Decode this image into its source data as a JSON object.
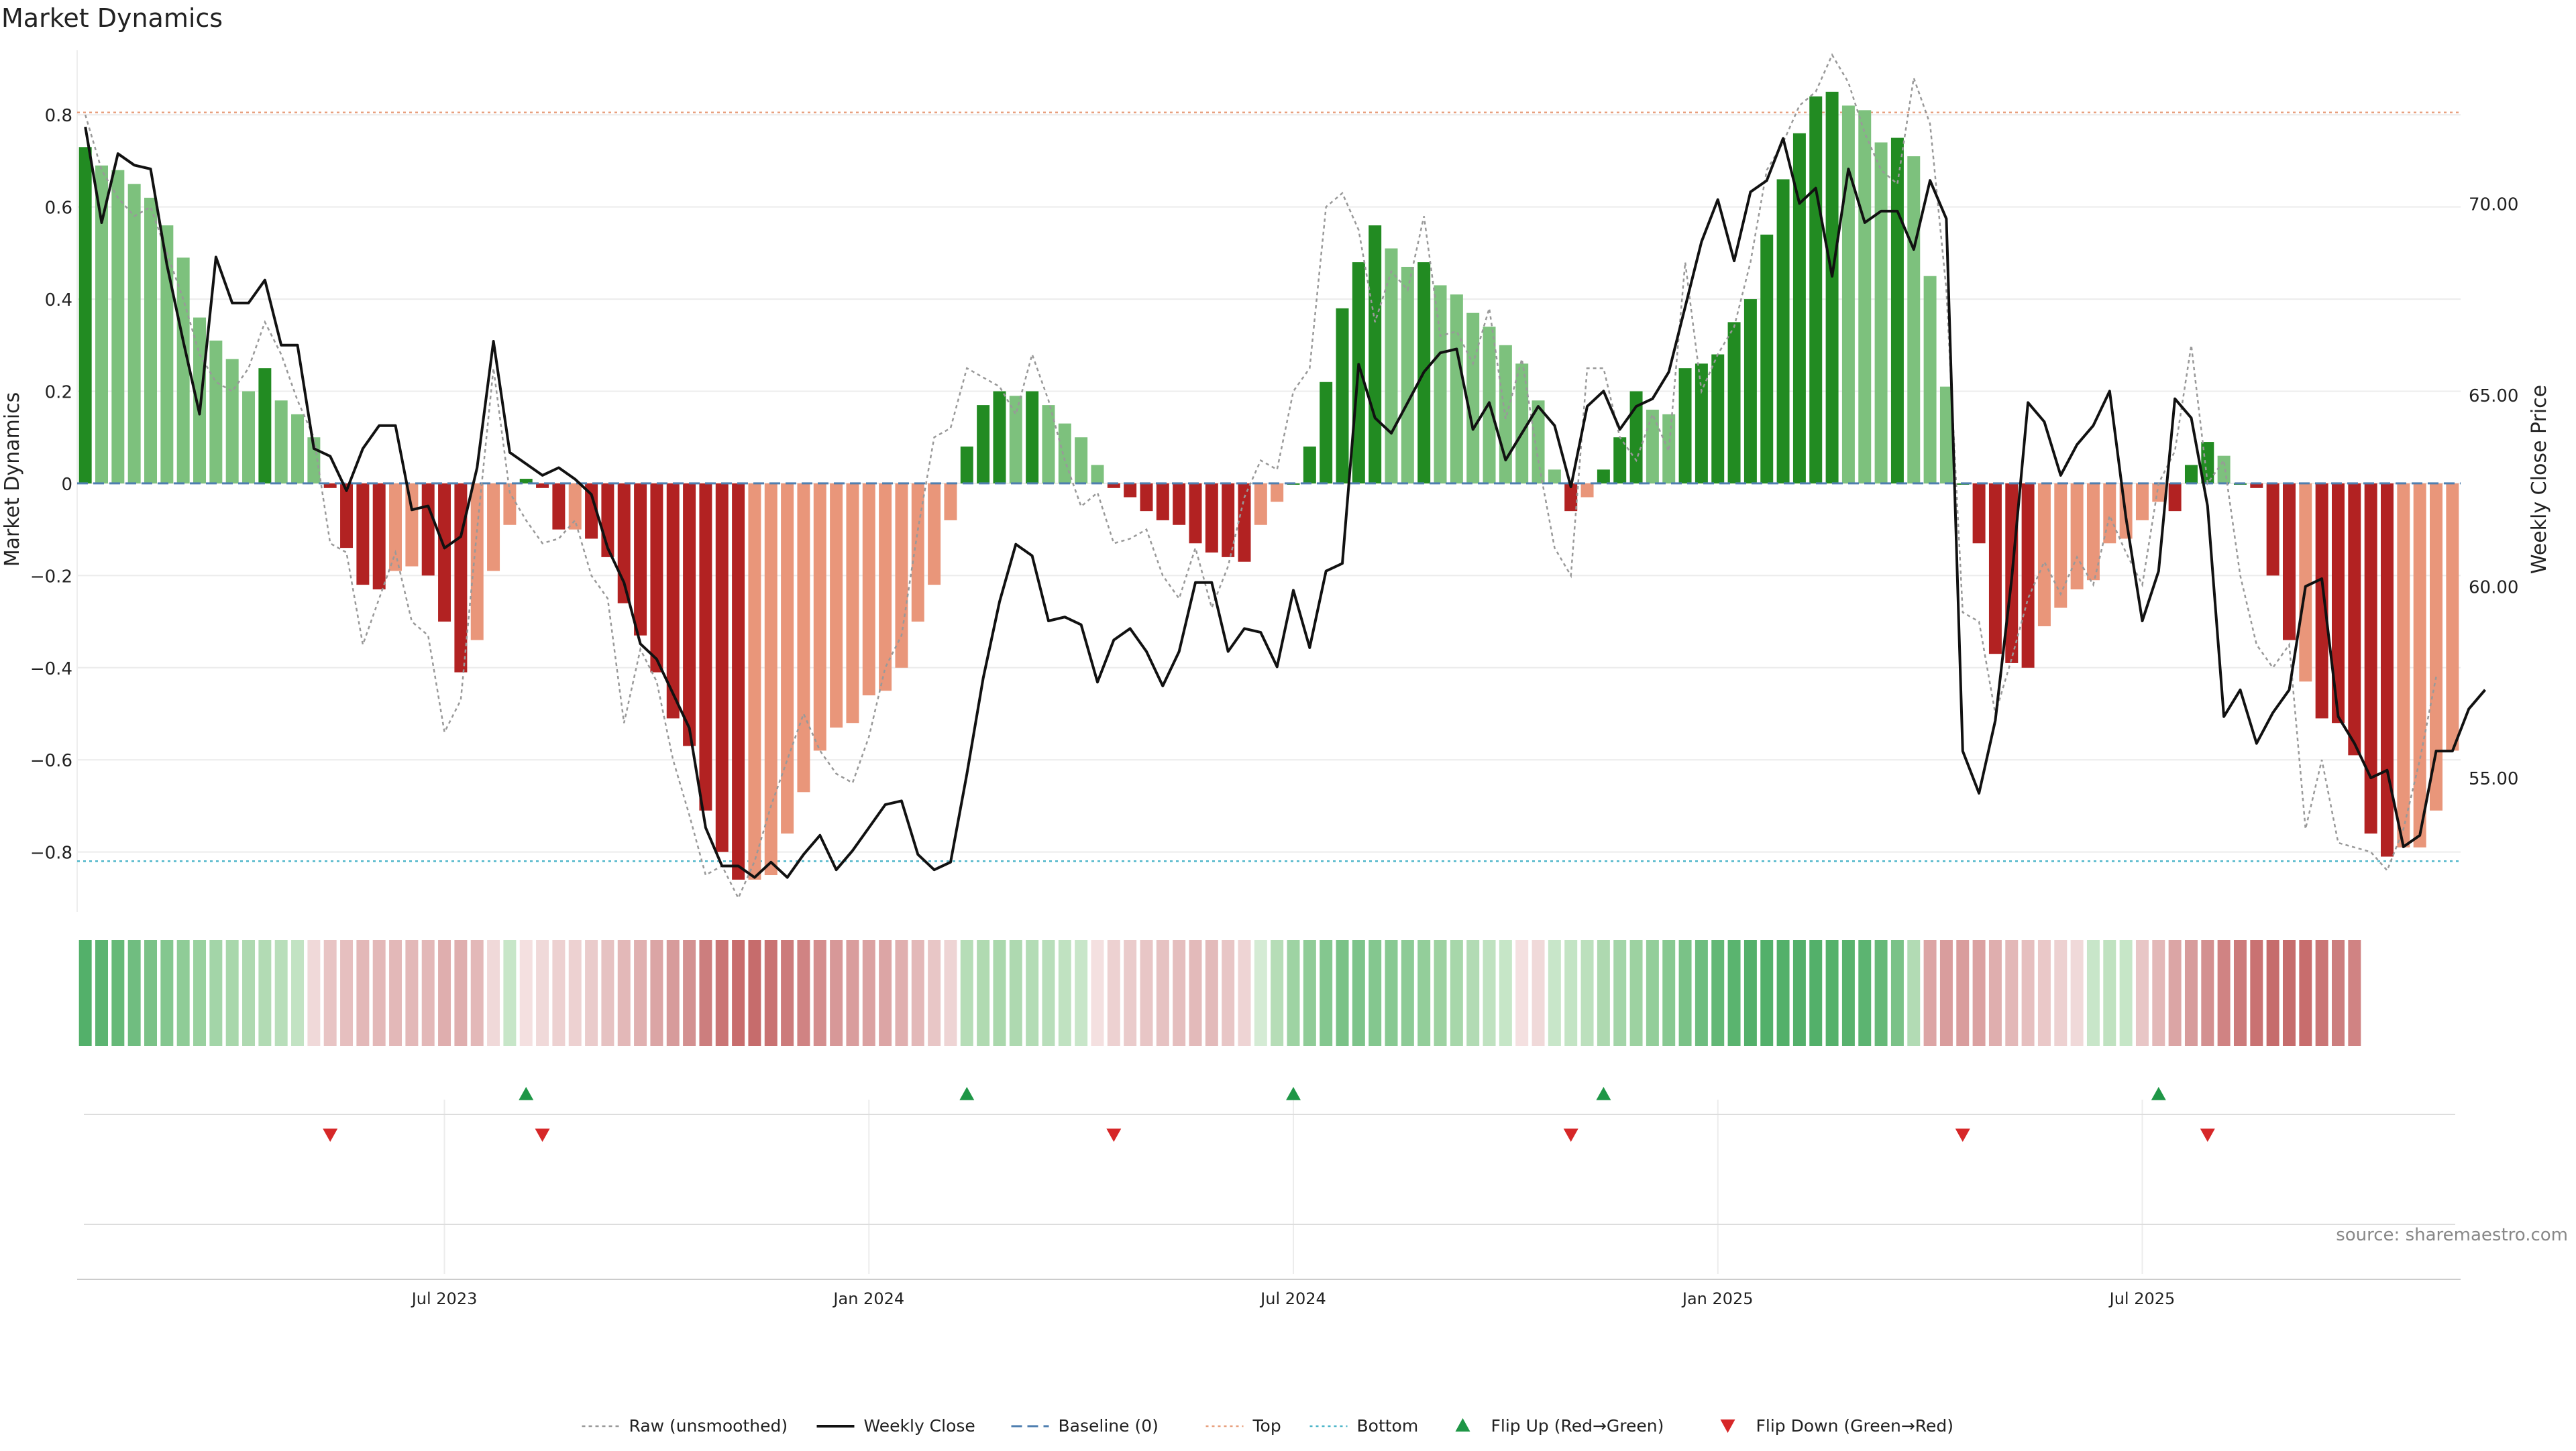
{
  "chart_data": {
    "type": "bar",
    "title": "Market Dynamics",
    "ylabel_left": "Market Dynamics",
    "ylabel_right": "Weekly Close Price",
    "source": "source: sharemaestro.com",
    "y_left_ticks": [
      "0.8",
      "0.6",
      "0.4",
      "0.2",
      "0",
      "−0.2",
      "−0.4",
      "−0.6",
      "−0.8"
    ],
    "y_left_tick_values": [
      0.8,
      0.6,
      0.4,
      0.2,
      0,
      -0.2,
      -0.4,
      -0.6,
      -0.8
    ],
    "y_right_ticks": [
      "70.00",
      "65.00",
      "60.00",
      "55.00"
    ],
    "y_right_tick_values": [
      70,
      65,
      60,
      55
    ],
    "x_ticks": [
      {
        "label": "Jul 2023",
        "index": 22
      },
      {
        "label": "Jan 2024",
        "index": 48
      },
      {
        "label": "Jul 2024",
        "index": 74
      },
      {
        "label": "Jan 2025",
        "index": 100
      },
      {
        "label": "Jul 2025",
        "index": 126
      }
    ],
    "ylim_left": [
      -0.93,
      0.94
    ],
    "ylim_right": [
      51.5,
      74
    ],
    "top_level": 0.805,
    "bottom_level": -0.82,
    "values": [
      0.73,
      0.69,
      0.68,
      0.65,
      0.62,
      0.56,
      0.49,
      0.36,
      0.31,
      0.27,
      0.2,
      0.25,
      0.18,
      0.15,
      0.1,
      -0.01,
      -0.14,
      -0.22,
      -0.23,
      -0.19,
      -0.18,
      -0.2,
      -0.3,
      -0.41,
      -0.34,
      -0.19,
      -0.09,
      0.01,
      -0.01,
      -0.1,
      -0.1,
      -0.12,
      -0.16,
      -0.26,
      -0.33,
      -0.41,
      -0.51,
      -0.57,
      -0.71,
      -0.8,
      -0.86,
      -0.86,
      -0.85,
      -0.76,
      -0.67,
      -0.58,
      -0.53,
      -0.52,
      -0.46,
      -0.45,
      -0.4,
      -0.3,
      -0.22,
      -0.08,
      0.08,
      0.17,
      0.2,
      0.19,
      0.2,
      0.17,
      0.13,
      0.1,
      0.04,
      -0.01,
      -0.03,
      -0.06,
      -0.08,
      -0.09,
      -0.13,
      -0.15,
      -0.16,
      -0.17,
      -0.09,
      -0.04,
      0.0,
      0.08,
      0.22,
      0.38,
      0.48,
      0.56,
      0.51,
      0.47,
      0.48,
      0.43,
      0.41,
      0.37,
      0.34,
      0.3,
      0.26,
      0.18,
      0.03,
      -0.06,
      -0.03,
      0.03,
      0.1,
      0.2,
      0.16,
      0.15,
      0.25,
      0.26,
      0.28,
      0.35,
      0.4,
      0.54,
      0.66,
      0.76,
      0.84,
      0.85,
      0.82,
      0.81,
      0.74,
      0.75,
      0.71,
      0.45,
      0.21,
      0.0,
      -0.13,
      -0.37,
      -0.39,
      -0.4,
      -0.31,
      -0.27,
      -0.23,
      -0.21,
      -0.13,
      -0.12,
      -0.08,
      -0.04,
      -0.06,
      0.04,
      0.09,
      0.06,
      0.0,
      -0.01,
      -0.2,
      -0.34,
      -0.43,
      -0.51,
      -0.52,
      -0.59,
      -0.76,
      -0.81,
      -0.79,
      -0.79,
      -0.71,
      -0.58
    ],
    "bar_colors": [
      "#228B22",
      "#7DC17D",
      "#7DC17D",
      "#7DC17D",
      "#7DC17D",
      "#7DC17D",
      "#7DC17D",
      "#7DC17D",
      "#7DC17D",
      "#7DC17D",
      "#7DC17D",
      "#228B22",
      "#7DC17D",
      "#7DC17D",
      "#7DC17D",
      "#B22222",
      "#B22222",
      "#B22222",
      "#B22222",
      "#E9967A",
      "#E9967A",
      "#B22222",
      "#B22222",
      "#B22222",
      "#E9967A",
      "#E9967A",
      "#E9967A",
      "#228B22",
      "#B22222",
      "#B22222",
      "#E9967A",
      "#B22222",
      "#B22222",
      "#B22222",
      "#B22222",
      "#B22222",
      "#B22222",
      "#B22222",
      "#B22222",
      "#B22222",
      "#B22222",
      "#E9967A",
      "#E9967A",
      "#E9967A",
      "#E9967A",
      "#E9967A",
      "#E9967A",
      "#E9967A",
      "#E9967A",
      "#E9967A",
      "#E9967A",
      "#E9967A",
      "#E9967A",
      "#E9967A",
      "#228B22",
      "#228B22",
      "#228B22",
      "#7DC17D",
      "#228B22",
      "#7DC17D",
      "#7DC17D",
      "#7DC17D",
      "#7DC17D",
      "#B22222",
      "#B22222",
      "#B22222",
      "#B22222",
      "#B22222",
      "#B22222",
      "#B22222",
      "#B22222",
      "#B22222",
      "#E9967A",
      "#E9967A",
      "#228B22",
      "#228B22",
      "#228B22",
      "#228B22",
      "#228B22",
      "#228B22",
      "#7DC17D",
      "#7DC17D",
      "#228B22",
      "#7DC17D",
      "#7DC17D",
      "#7DC17D",
      "#7DC17D",
      "#7DC17D",
      "#7DC17D",
      "#7DC17D",
      "#7DC17D",
      "#B22222",
      "#E9967A",
      "#228B22",
      "#228B22",
      "#228B22",
      "#7DC17D",
      "#7DC17D",
      "#228B22",
      "#228B22",
      "#228B22",
      "#228B22",
      "#228B22",
      "#228B22",
      "#228B22",
      "#228B22",
      "#228B22",
      "#228B22",
      "#7DC17D",
      "#7DC17D",
      "#7DC17D",
      "#228B22",
      "#7DC17D",
      "#7DC17D",
      "#7DC17D",
      "#228B22",
      "#B22222",
      "#B22222",
      "#B22222",
      "#B22222",
      "#E9967A",
      "#E9967A",
      "#E9967A",
      "#E9967A",
      "#E9967A",
      "#E9967A",
      "#E9967A",
      "#E9967A",
      "#B22222",
      "#228B22",
      "#228B22",
      "#7DC17D",
      "#228B22",
      "#B22222",
      "#B22222",
      "#B22222",
      "#E9967A",
      "#B22222",
      "#B22222",
      "#B22222",
      "#B22222",
      "#B22222",
      "#E9967A",
      "#E9967A",
      "#E9967A",
      "#E9967A"
    ],
    "raw_values": [
      0.8,
      0.68,
      0.62,
      0.58,
      0.6,
      0.5,
      0.4,
      0.28,
      0.22,
      0.2,
      0.25,
      0.35,
      0.28,
      0.18,
      0.1,
      -0.13,
      -0.15,
      -0.35,
      -0.25,
      -0.15,
      -0.3,
      -0.33,
      -0.54,
      -0.47,
      -0.1,
      0.25,
      -0.02,
      -0.08,
      -0.13,
      -0.12,
      -0.08,
      -0.2,
      -0.25,
      -0.52,
      -0.36,
      -0.43,
      -0.6,
      -0.72,
      -0.85,
      -0.83,
      -0.9,
      -0.82,
      -0.7,
      -0.6,
      -0.5,
      -0.58,
      -0.63,
      -0.65,
      -0.55,
      -0.4,
      -0.33,
      -0.1,
      0.1,
      0.12,
      0.25,
      0.23,
      0.21,
      0.15,
      0.28,
      0.18,
      0.05,
      -0.05,
      -0.02,
      -0.13,
      -0.12,
      -0.1,
      -0.2,
      -0.25,
      -0.14,
      -0.27,
      -0.18,
      -0.03,
      0.05,
      0.03,
      0.2,
      0.25,
      0.6,
      0.63,
      0.55,
      0.35,
      0.46,
      0.42,
      0.58,
      0.32,
      0.33,
      0.26,
      0.38,
      0.14,
      0.27,
      0.05,
      -0.14,
      -0.2,
      0.25,
      0.25,
      0.1,
      0.05,
      0.15,
      0.07,
      0.48,
      0.2,
      0.28,
      0.34,
      0.48,
      0.68,
      0.74,
      0.82,
      0.85,
      0.93,
      0.87,
      0.76,
      0.68,
      0.65,
      0.88,
      0.78,
      0.42,
      -0.28,
      -0.3,
      -0.5,
      -0.38,
      -0.25,
      -0.17,
      -0.24,
      -0.16,
      -0.22,
      -0.07,
      -0.15,
      -0.22,
      0.0,
      0.07,
      0.3,
      0.0,
      0.05,
      -0.2,
      -0.35,
      -0.4,
      -0.35,
      -0.75,
      -0.6,
      -0.78,
      -0.79,
      -0.8,
      -0.84,
      -0.75,
      -0.6,
      -0.42
    ],
    "weekly_close": [
      72.0,
      69.5,
      71.3,
      71.0,
      70.9,
      68.4,
      66.4,
      64.5,
      68.6,
      67.4,
      67.4,
      68.0,
      66.3,
      66.3,
      63.6,
      63.4,
      62.5,
      63.6,
      64.2,
      64.2,
      62.0,
      62.1,
      61.0,
      61.3,
      63.1,
      66.4,
      63.5,
      63.2,
      62.9,
      63.1,
      62.8,
      62.4,
      61.0,
      60.1,
      58.5,
      58.1,
      57.2,
      56.3,
      53.7,
      52.7,
      52.7,
      52.4,
      52.8,
      52.4,
      53.0,
      53.5,
      52.6,
      53.1,
      53.7,
      54.3,
      54.4,
      53.0,
      52.6,
      52.8,
      55.1,
      57.6,
      59.6,
      61.1,
      60.8,
      59.1,
      59.2,
      59.0,
      57.5,
      58.6,
      58.9,
      58.3,
      57.4,
      58.3,
      60.1,
      60.1,
      58.3,
      58.9,
      58.8,
      57.9,
      59.9,
      58.4,
      60.4,
      60.6,
      65.8,
      64.4,
      64.0,
      64.8,
      65.6,
      66.1,
      66.2,
      64.1,
      64.8,
      63.3,
      64.0,
      64.7,
      64.2,
      62.6,
      64.7,
      65.1,
      64.1,
      64.7,
      64.9,
      65.6,
      67.3,
      69.0,
      70.1,
      68.5,
      70.3,
      70.6,
      71.7,
      70.0,
      70.4,
      68.1,
      70.9,
      69.5,
      69.8,
      69.8,
      68.8,
      70.6,
      69.6,
      55.7,
      54.6,
      56.5,
      60.2,
      64.8,
      64.3,
      62.9,
      63.7,
      64.2,
      65.1,
      61.8,
      59.1,
      60.4,
      64.9,
      64.4,
      62.1,
      56.6,
      57.3,
      55.9,
      56.7,
      57.3,
      60.0,
      60.2,
      56.6,
      55.9,
      55.0,
      55.2,
      53.2,
      53.5,
      55.7,
      55.7,
      56.8,
      57.3
    ]
  },
  "heat_strip": {
    "colors": [
      "#53B06A",
      "#5CB471",
      "#66B978",
      "#70BD80",
      "#7AC287",
      "#84C78F",
      "#8FCC97",
      "#99D19F",
      "#A3D5A8",
      "#A8D7AB",
      "#AED9B0",
      "#B2DBB4",
      "#B8DEBA",
      "#C2E3C3",
      "#F0D9D9",
      "#E8C4C4",
      "#E6BFBF",
      "#E3B8B8",
      "#E3B8B8",
      "#E3B8B8",
      "#E3B8B8",
      "#E3B8B8",
      "#DFAEAE",
      "#DFAEAE",
      "#E3B8B8",
      "#F0D9D9",
      "#C7E6C8",
      "#F4E0E0",
      "#F0D9D9",
      "#EDD1D1",
      "#EDD1D1",
      "#EACBCB",
      "#E6C2C2",
      "#E3B8B8",
      "#E0B0B0",
      "#DBA5A5",
      "#D79B9B",
      "#D39090",
      "#CC7E7E",
      "#CA7575",
      "#C86D6D",
      "#C66C6C",
      "#C97272",
      "#CC7B7B",
      "#D08383",
      "#D48E8E",
      "#D79898",
      "#D99D9D",
      "#DBA1A1",
      "#DCA5A5",
      "#E0AFAF",
      "#E3B8B8",
      "#E8C6C6",
      "#EED4D4",
      "#B6DDB7",
      "#B0DAB1",
      "#AAD8AC",
      "#AED9B0",
      "#B3DCB5",
      "#B8DEBA",
      "#C0E2C1",
      "#C8E6C9",
      "#F4E0E0",
      "#EDD1D1",
      "#EACBCB",
      "#E8C6C6",
      "#E6C2C2",
      "#E5BEBE",
      "#E3BABA",
      "#E3BABA",
      "#E8C6C6",
      "#EED4D4",
      "#D4EBD4",
      "#B6DDB7",
      "#9ED3A3",
      "#8FCC97",
      "#84C78F",
      "#7AC287",
      "#7DC48A",
      "#84C78F",
      "#88C992",
      "#8DCB96",
      "#93CE9A",
      "#9DD2A1",
      "#A7D7AA",
      "#B2DBB4",
      "#BFE2C0",
      "#C6E6C7",
      "#F4E0E0",
      "#F0D9D9",
      "#C8E6C9",
      "#C3E4C4",
      "#BCE0BD",
      "#AED9B0",
      "#A3D5A8",
      "#9DD2A1",
      "#93CE9A",
      "#88C992",
      "#7AC287",
      "#6EBD7F",
      "#63B876",
      "#5AB46F",
      "#53B06A",
      "#53B06A",
      "#53B06A",
      "#53B06A",
      "#53B06A",
      "#55B16B",
      "#58B26D",
      "#5CB471",
      "#66B978",
      "#7AC287",
      "#B2DBB4",
      "#DCA5A5",
      "#D99D9D",
      "#D99D9D",
      "#DBA1A1",
      "#DFAEAE",
      "#E3B8B8",
      "#E6BFBF",
      "#EAC8C8",
      "#EDD1D1",
      "#F0D9D9",
      "#C8E6C9",
      "#BFE2C0",
      "#C6E6C7",
      "#E8C6C6",
      "#E3B8B8",
      "#DBA5A5",
      "#D79B9B",
      "#D39090",
      "#D08383",
      "#CC7B7B",
      "#C97272",
      "#C66C6C",
      "#C66C6C",
      "#C86D6D",
      "#CA7575",
      "#CC7E7E",
      "#D08383"
    ]
  },
  "events": {
    "flip_up_indices": [
      27,
      54,
      74,
      93,
      127
    ],
    "flip_down_indices": [
      15,
      28,
      63,
      91,
      115,
      130
    ]
  },
  "legend": {
    "items": [
      {
        "key": "raw",
        "label": "Raw (unsmoothed)"
      },
      {
        "key": "close",
        "label": "Weekly Close"
      },
      {
        "key": "baseline",
        "label": "Baseline (0)"
      },
      {
        "key": "top",
        "label": "Top"
      },
      {
        "key": "bottom",
        "label": "Bottom"
      },
      {
        "key": "flip-up",
        "label": "Flip Up (Red→Green)"
      },
      {
        "key": "flip-down",
        "label": "Flip Down (Green→Red)"
      }
    ]
  },
  "colors": {
    "strong_green": "#228B22",
    "light_green": "#7DC17D",
    "strong_red": "#B22222",
    "light_red": "#E9967A",
    "top_line": "#E8A07F",
    "bottom_line": "#4FB6C9",
    "baseline": "#4F7FB0",
    "flip_up": "#1E9646",
    "flip_down": "#D62728",
    "close_line": "#111111",
    "raw_line": "#999999"
  }
}
